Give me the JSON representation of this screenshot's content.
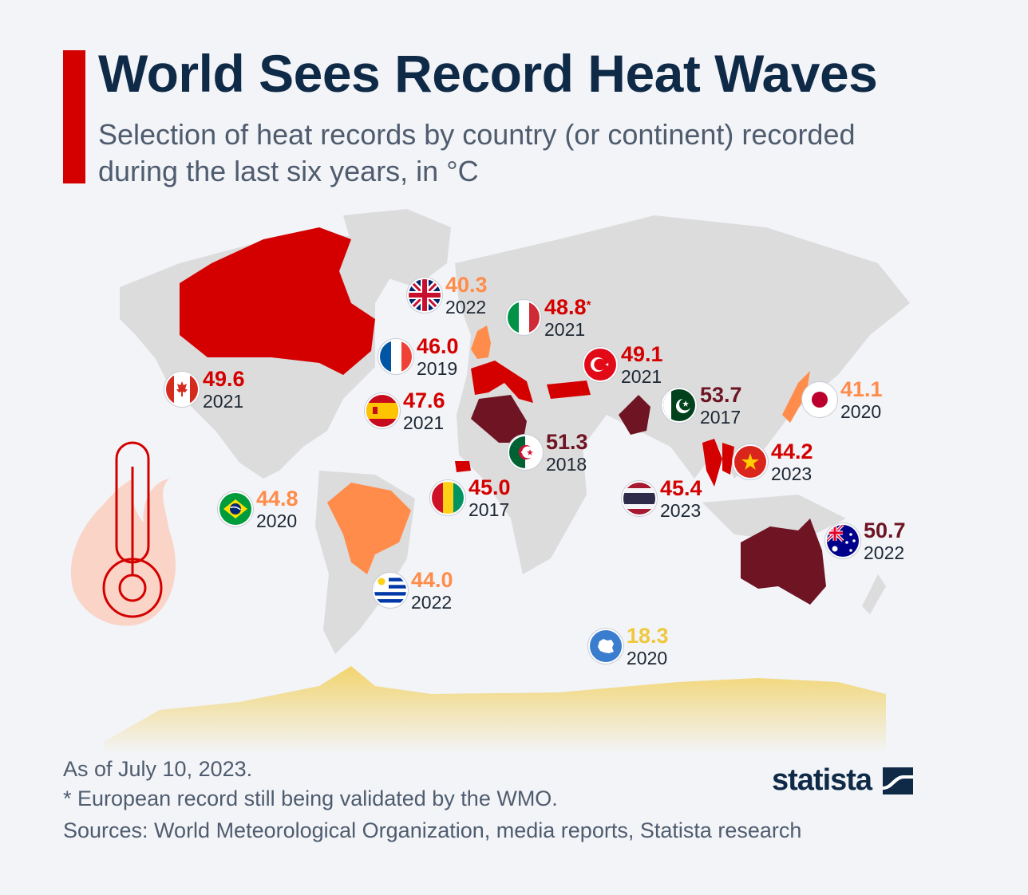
{
  "header": {
    "title": "World Sees Record Heat Waves",
    "subtitle": "Selection of heat records by country (or continent) recorded during the last six years, in °C"
  },
  "colors": {
    "accent": "#d40000",
    "title": "#0f2a47",
    "high": "#d40000",
    "extreme": "#6e1423",
    "moderate": "#ff8c4a",
    "low": "#f0c83c",
    "land": "#dcdcdc"
  },
  "records": [
    {
      "country": "United Kingdom",
      "flag": "uk-flag-icon",
      "value": "40.3",
      "year": "2022",
      "color": "#ff8c4a"
    },
    {
      "country": "Italy",
      "flag": "italy-flag-icon",
      "value": "48.8",
      "note": "*",
      "year": "2021",
      "color": "#d40000"
    },
    {
      "country": "France",
      "flag": "france-flag-icon",
      "value": "46.0",
      "year": "2019",
      "color": "#d40000"
    },
    {
      "country": "Turkey",
      "flag": "turkey-flag-icon",
      "value": "49.1",
      "year": "2021",
      "color": "#d40000"
    },
    {
      "country": "Canada",
      "flag": "canada-flag-icon",
      "value": "49.6",
      "year": "2021",
      "color": "#d40000"
    },
    {
      "country": "Spain",
      "flag": "spain-flag-icon",
      "value": "47.6",
      "year": "2021",
      "color": "#d40000"
    },
    {
      "country": "Pakistan",
      "flag": "pakistan-flag-icon",
      "value": "53.7",
      "year": "2017",
      "color": "#6e1423"
    },
    {
      "country": "Japan",
      "flag": "japan-flag-icon",
      "value": "41.1",
      "year": "2020",
      "color": "#ff8c4a"
    },
    {
      "country": "Algeria",
      "flag": "algeria-flag-icon",
      "value": "51.3",
      "year": "2018",
      "color": "#6e1423"
    },
    {
      "country": "Vietnam",
      "flag": "vietnam-flag-icon",
      "value": "44.2",
      "year": "2023",
      "color": "#d40000"
    },
    {
      "country": "Brazil",
      "flag": "brazil-flag-icon",
      "value": "44.8",
      "year": "2020",
      "color": "#ff8c4a"
    },
    {
      "country": "Guinea",
      "flag": "guinea-flag-icon",
      "value": "45.0",
      "year": "2017",
      "color": "#d40000"
    },
    {
      "country": "Thailand",
      "flag": "thailand-flag-icon",
      "value": "45.4",
      "year": "2023",
      "color": "#d40000"
    },
    {
      "country": "Australia",
      "flag": "australia-flag-icon",
      "value": "50.7",
      "year": "2022",
      "color": "#6e1423"
    },
    {
      "country": "Uruguay",
      "flag": "uruguay-flag-icon",
      "value": "44.0",
      "year": "2022",
      "color": "#ff8c4a"
    },
    {
      "country": "Antarctica",
      "flag": "antarctica-flag-icon",
      "value": "18.3",
      "year": "2020",
      "color": "#f0c83c"
    }
  ],
  "footer": {
    "as_of": "As of July 10, 2023.",
    "note": "* European record still being validated by the WMO.",
    "sources": "Sources: World Meteorological Organization, media reports, Statista research"
  },
  "logo": {
    "text": "statista"
  }
}
